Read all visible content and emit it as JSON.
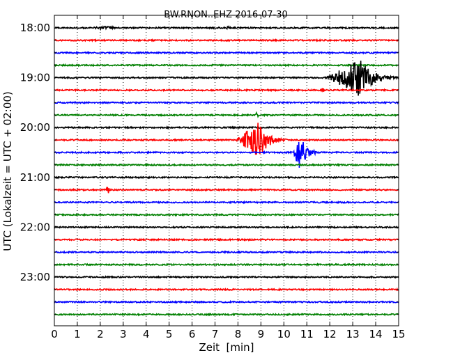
{
  "chart_data": {
    "type": "line",
    "title": "BW.RNON..EHZ 2016-07-30",
    "xlabel": "Zeit  [min]",
    "ylabel": "UTC (Lokalzeit = UTC + 02:00)",
    "xlim": [
      0,
      15
    ],
    "x_ticks": [
      "0",
      "1",
      "2",
      "3",
      "4",
      "5",
      "6",
      "7",
      "8",
      "9",
      "10",
      "11",
      "12",
      "13",
      "14",
      "15"
    ],
    "grid": "vertical dotted",
    "trace_colors": [
      "#000000",
      "#ff0000",
      "#0000ff",
      "#008000"
    ],
    "trace_rows": [
      "18:00",
      "18:15",
      "18:30",
      "18:45",
      "19:00",
      "19:15",
      "19:30",
      "19:45",
      "20:00",
      "20:15",
      "20:30",
      "20:45",
      "21:00",
      "21:15",
      "21:30",
      "21:45",
      "22:00",
      "22:15",
      "22:30",
      "22:45",
      "23:00",
      "23:15",
      "23:30",
      "23:45"
    ],
    "y_tick_labels": [
      "18:00",
      "19:00",
      "20:00",
      "21:00",
      "22:00",
      "23:00"
    ],
    "events": [
      {
        "row": "18:00",
        "start": 1.2,
        "peak": 2.4,
        "end": 3.2,
        "amplitude": 0.1
      },
      {
        "row": "18:00",
        "start": 7.4,
        "peak": 7.6,
        "end": 7.9,
        "amplitude": 0.1
      },
      {
        "row": "19:00",
        "start": 11.8,
        "peak": 13.3,
        "end": 15.0,
        "amplitude": 1.0
      },
      {
        "row": "19:15",
        "start": 11.6,
        "peak": 11.7,
        "end": 11.8,
        "amplitude": 0.25
      },
      {
        "row": "19:45",
        "start": 8.75,
        "peak": 8.85,
        "end": 8.95,
        "amplitude": 0.25
      },
      {
        "row": "20:15",
        "start": 7.9,
        "peak": 8.9,
        "end": 10.2,
        "amplitude": 1.0
      },
      {
        "row": "20:30",
        "start": 10.4,
        "peak": 10.7,
        "end": 11.6,
        "amplitude": 1.0
      },
      {
        "row": "21:15",
        "start": 2.2,
        "peak": 2.35,
        "end": 2.55,
        "amplitude": 0.2
      }
    ]
  }
}
